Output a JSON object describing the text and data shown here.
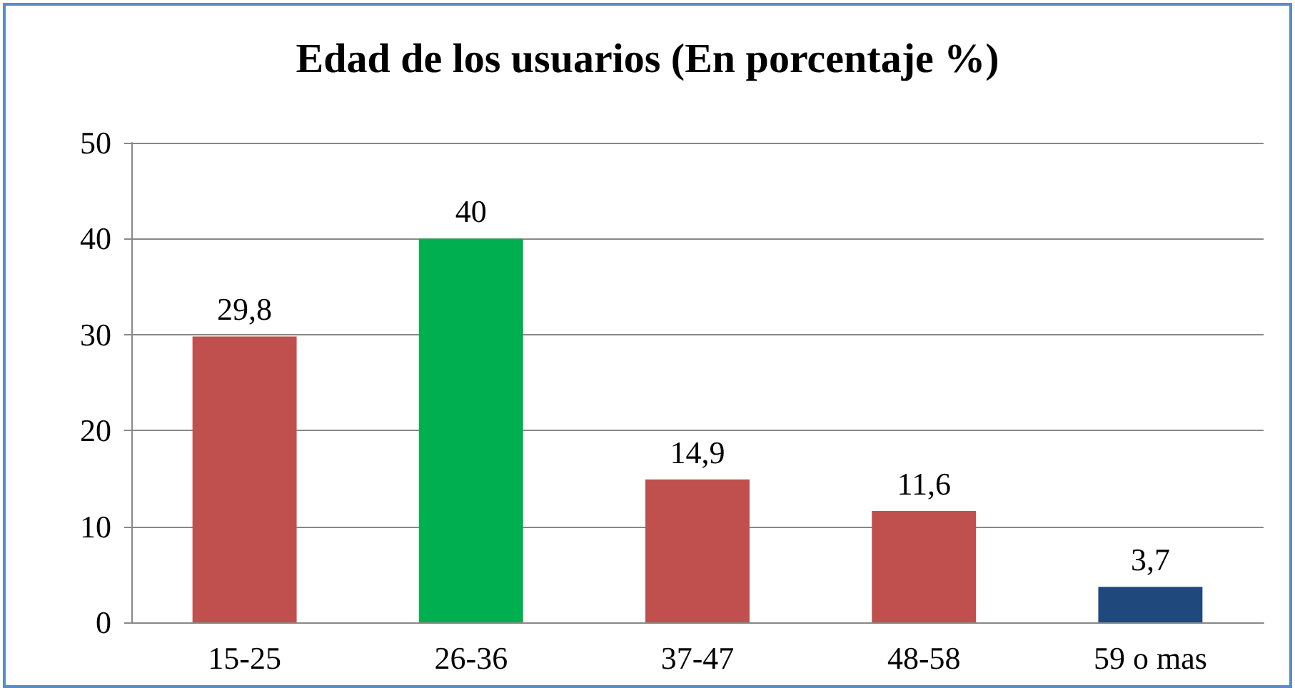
{
  "chart_data": {
    "type": "bar",
    "title": "Edad de los usuarios (En porcentaje %)",
    "categories": [
      "15-25",
      "26-36",
      "37-47",
      "48-58",
      "59 o mas"
    ],
    "values": [
      29.8,
      40,
      14.9,
      11.6,
      3.7
    ],
    "colors": [
      "#c0504d",
      "#00b050",
      "#c0504d",
      "#c0504d",
      "#1f497d"
    ],
    "value_labels": [
      "29,8",
      "40",
      "14,9",
      "11,6",
      "3,7"
    ],
    "ylim": [
      0,
      50
    ],
    "yticks": [
      0,
      10,
      20,
      30,
      40,
      50
    ],
    "grid": "y"
  }
}
